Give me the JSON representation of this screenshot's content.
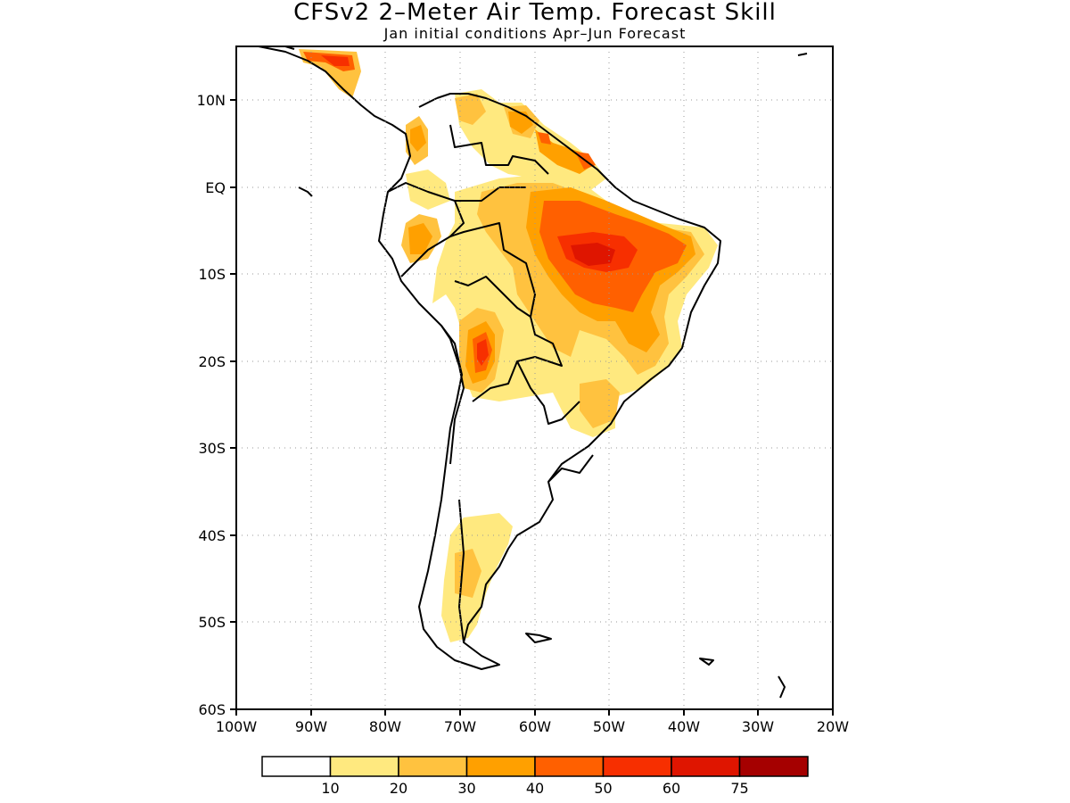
{
  "title": "CFSv2 2–Meter Air Temp. Forecast Skill",
  "subtitle": "Jan initial conditions   Apr–Jun Forecast",
  "map": {
    "lon_range": [
      -100,
      -20
    ],
    "lat_range": [
      -60,
      15
    ],
    "lat_ticks": [
      {
        "value": 10,
        "label": "10N"
      },
      {
        "value": 0,
        "label": "EQ"
      },
      {
        "value": -10,
        "label": "10S"
      },
      {
        "value": -20,
        "label": "20S"
      },
      {
        "value": -30,
        "label": "30S"
      },
      {
        "value": -40,
        "label": "40S"
      },
      {
        "value": -50,
        "label": "50S"
      },
      {
        "value": -60,
        "label": "60S"
      }
    ],
    "lon_ticks": [
      {
        "value": -100,
        "label": "100W"
      },
      {
        "value": -90,
        "label": "90W"
      },
      {
        "value": -80,
        "label": "80W"
      },
      {
        "value": -70,
        "label": "70W"
      },
      {
        "value": -60,
        "label": "60W"
      },
      {
        "value": -50,
        "label": "50W"
      },
      {
        "value": -40,
        "label": "40W"
      },
      {
        "value": -30,
        "label": "30W"
      },
      {
        "value": -20,
        "label": "20W"
      }
    ],
    "grid": "dotted"
  },
  "colorbar": {
    "colors": [
      "#ffffff",
      "#ffe97f",
      "#ffc23f",
      "#ffa000",
      "#ff6000",
      "#f72f00",
      "#df1500",
      "#a50000"
    ],
    "labels": [
      "10",
      "20",
      "30",
      "40",
      "50",
      "60",
      "75"
    ]
  }
}
